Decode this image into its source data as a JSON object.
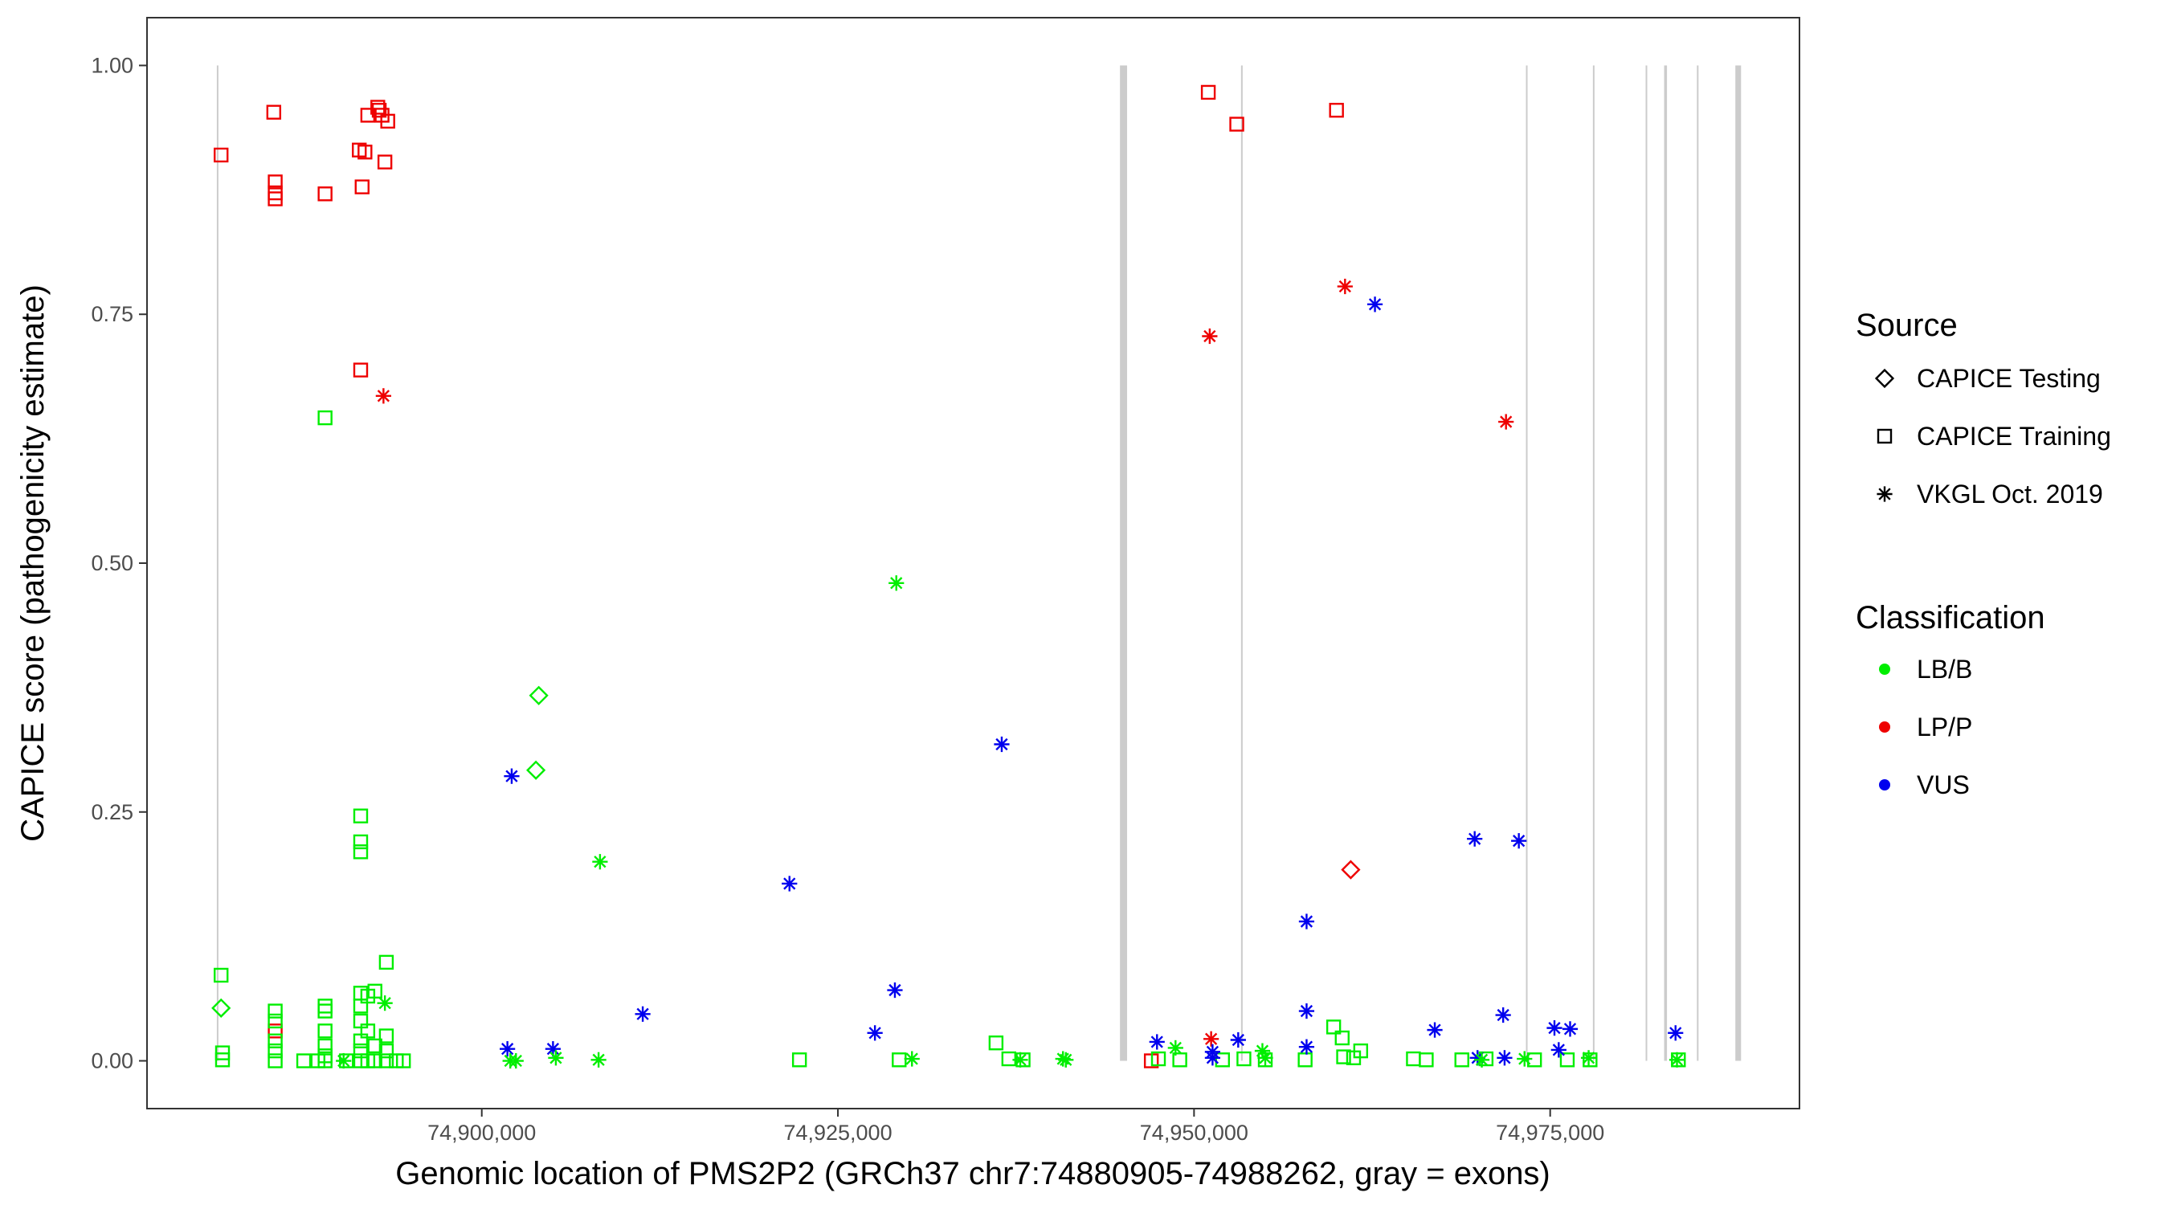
{
  "chart_data": {
    "type": "scatter",
    "xlabel": "Genomic location of PMS2P2 (GRCh37 chr7:74880905-74988262, gray = exons)",
    "ylabel": "CAPICE score (pathogenicity estimate)",
    "xlim": [
      74876500,
      74992500
    ],
    "ylim": [
      -0.048,
      1.048
    ],
    "x_ticks": [
      74900000,
      74925000,
      74950000,
      74975000
    ],
    "x_tick_labels": [
      "74,900,000",
      "74,925,000",
      "74,950,000",
      "74,975,000"
    ],
    "y_ticks": [
      0,
      0.25,
      0.5,
      0.75,
      1.0
    ],
    "y_tick_labels": [
      "0.00",
      "0.25",
      "0.50",
      "0.75",
      "1.00"
    ],
    "grid": false,
    "legend_position": "right",
    "exons": [
      [
        74881400,
        74881500
      ],
      [
        74944800,
        74945300
      ],
      [
        74953300,
        74953400
      ],
      [
        74973300,
        74973400
      ],
      [
        74978000,
        74978100
      ],
      [
        74981700,
        74981800
      ],
      [
        74983000,
        74983200
      ],
      [
        74985300,
        74985400
      ],
      [
        74988000,
        74988400
      ]
    ],
    "legend": {
      "source_title": "Source",
      "source_items": [
        {
          "label": "CAPICE Testing",
          "shape": "diamond"
        },
        {
          "label": "CAPICE Training",
          "shape": "square"
        },
        {
          "label": "VKGL Oct. 2019",
          "shape": "asterisk"
        }
      ],
      "class_title": "Classification",
      "class_items": [
        {
          "label": "LB/B",
          "color": "#00ee00"
        },
        {
          "label": "LP/P",
          "color": "#ee0000"
        },
        {
          "label": "VUS",
          "color": "#0000ee"
        }
      ]
    },
    "colors": {
      "LB/B": "#00ee00",
      "LP/P": "#ee0000",
      "VUS": "#0000ee"
    },
    "series": [
      {
        "source": "CAPICE Training",
        "class": "LP/P",
        "shape": "square",
        "points": [
          [
            74881700,
            0.91
          ],
          [
            74885400,
            0.953
          ],
          [
            74885500,
            0.883
          ],
          [
            74885500,
            0.872
          ],
          [
            74885500,
            0.866
          ],
          [
            74889000,
            0.871
          ],
          [
            74891400,
            0.915
          ],
          [
            74891600,
            0.878
          ],
          [
            74891800,
            0.913
          ],
          [
            74892000,
            0.95
          ],
          [
            74892700,
            0.958
          ],
          [
            74892800,
            0.955
          ],
          [
            74893000,
            0.95
          ],
          [
            74893200,
            0.903
          ],
          [
            74893400,
            0.944
          ],
          [
            74891500,
            0.694
          ],
          [
            74885500,
            0.03
          ],
          [
            74951000,
            0.973
          ],
          [
            74953000,
            0.941
          ],
          [
            74960000,
            0.955
          ],
          [
            74947000,
            0.0
          ]
        ]
      },
      {
        "source": "CAPICE Training",
        "class": "LB/B",
        "shape": "square",
        "points": [
          [
            74889000,
            0.646
          ],
          [
            74881700,
            0.086
          ],
          [
            74881800,
            0.008
          ],
          [
            74881800,
            0.001
          ],
          [
            74885500,
            0.05
          ],
          [
            74885500,
            0.04
          ],
          [
            74885500,
            0.02
          ],
          [
            74885500,
            0.01
          ],
          [
            74885500,
            0.0
          ],
          [
            74887500,
            0.0
          ],
          [
            74888500,
            0.0
          ],
          [
            74889000,
            0.055
          ],
          [
            74889000,
            0.05
          ],
          [
            74889000,
            0.03
          ],
          [
            74889000,
            0.015
          ],
          [
            74889000,
            0.005
          ],
          [
            74889000,
            0.0
          ],
          [
            74890500,
            0.0
          ],
          [
            74891500,
            0.246
          ],
          [
            74891500,
            0.22
          ],
          [
            74891500,
            0.21
          ],
          [
            74891500,
            0.068
          ],
          [
            74891500,
            0.055
          ],
          [
            74891500,
            0.04
          ],
          [
            74891500,
            0.02
          ],
          [
            74891500,
            0.01
          ],
          [
            74891500,
            0.0
          ],
          [
            74892000,
            0.065
          ],
          [
            74892000,
            0.03
          ],
          [
            74892000,
            0.0
          ],
          [
            74892500,
            0.07
          ],
          [
            74892500,
            0.015
          ],
          [
            74892500,
            0.0
          ],
          [
            74893300,
            0.099
          ],
          [
            74893300,
            0.025
          ],
          [
            74893300,
            0.01
          ],
          [
            74893300,
            0.0
          ],
          [
            74894000,
            0.0
          ],
          [
            74894500,
            0.0
          ],
          [
            74922300,
            0.001
          ],
          [
            74929300,
            0.001
          ],
          [
            74936100,
            0.018
          ],
          [
            74937000,
            0.002
          ],
          [
            74938000,
            0.001
          ],
          [
            74947500,
            0.002
          ],
          [
            74949000,
            0.001
          ],
          [
            74952000,
            0.001
          ],
          [
            74953500,
            0.002
          ],
          [
            74955000,
            0.001
          ],
          [
            74957800,
            0.001
          ],
          [
            74959800,
            0.034
          ],
          [
            74960400,
            0.023
          ],
          [
            74960500,
            0.004
          ],
          [
            74961200,
            0.003
          ],
          [
            74961700,
            0.01
          ],
          [
            74965400,
            0.002
          ],
          [
            74966300,
            0.001
          ],
          [
            74968800,
            0.001
          ],
          [
            74970500,
            0.002
          ],
          [
            74973900,
            0.001
          ],
          [
            74976200,
            0.001
          ],
          [
            74977800,
            0.001
          ],
          [
            74984000,
            0.001
          ]
        ]
      },
      {
        "source": "CAPICE Testing",
        "class": "LB/B",
        "shape": "diamond",
        "points": [
          [
            74881700,
            0.053
          ],
          [
            74904000,
            0.367
          ],
          [
            74903800,
            0.292
          ]
        ]
      },
      {
        "source": "CAPICE Testing",
        "class": "LP/P",
        "shape": "diamond",
        "points": [
          [
            74961000,
            0.192
          ]
        ]
      },
      {
        "source": "VKGL Oct. 2019",
        "class": "LP/P",
        "shape": "asterisk",
        "points": [
          [
            74893100,
            0.668
          ],
          [
            74951100,
            0.728
          ],
          [
            74960600,
            0.778
          ],
          [
            74971900,
            0.642
          ],
          [
            74951200,
            0.022
          ]
        ]
      },
      {
        "source": "VKGL Oct. 2019",
        "class": "VUS",
        "shape": "asterisk",
        "points": [
          [
            74902100,
            0.286
          ],
          [
            74921600,
            0.178
          ],
          [
            74936500,
            0.318
          ],
          [
            74929000,
            0.071
          ],
          [
            74927600,
            0.028
          ],
          [
            74911300,
            0.047
          ],
          [
            74901800,
            0.012
          ],
          [
            74905000,
            0.012
          ],
          [
            74947400,
            0.019
          ],
          [
            74951300,
            0.009
          ],
          [
            74951300,
            0.003
          ],
          [
            74953100,
            0.021
          ],
          [
            74957900,
            0.14
          ],
          [
            74957900,
            0.05
          ],
          [
            74957900,
            0.014
          ],
          [
            74962700,
            0.76
          ],
          [
            74969700,
            0.223
          ],
          [
            74972800,
            0.221
          ],
          [
            74966900,
            0.031
          ],
          [
            74971700,
            0.046
          ],
          [
            74969900,
            0.003
          ],
          [
            74975300,
            0.033
          ],
          [
            74976400,
            0.032
          ],
          [
            74975600,
            0.011
          ],
          [
            74971800,
            0.003
          ],
          [
            74983800,
            0.028
          ]
        ]
      },
      {
        "source": "VKGL Oct. 2019",
        "class": "LB/B",
        "shape": "asterisk",
        "points": [
          [
            74929100,
            0.48
          ],
          [
            74908300,
            0.2
          ],
          [
            74893200,
            0.058
          ],
          [
            74890300,
            0.0
          ],
          [
            74902000,
            0.0
          ],
          [
            74902400,
            0.0
          ],
          [
            74905200,
            0.003
          ],
          [
            74908200,
            0.001
          ],
          [
            74930200,
            0.002
          ],
          [
            74937800,
            0.001
          ],
          [
            74940800,
            0.002
          ],
          [
            74941000,
            0.001
          ],
          [
            74948700,
            0.013
          ],
          [
            74954800,
            0.01
          ],
          [
            74955000,
            0.003
          ],
          [
            74970200,
            0.001
          ],
          [
            74973200,
            0.002
          ],
          [
            74977700,
            0.003
          ],
          [
            74983900,
            0.001
          ]
        ]
      }
    ]
  }
}
